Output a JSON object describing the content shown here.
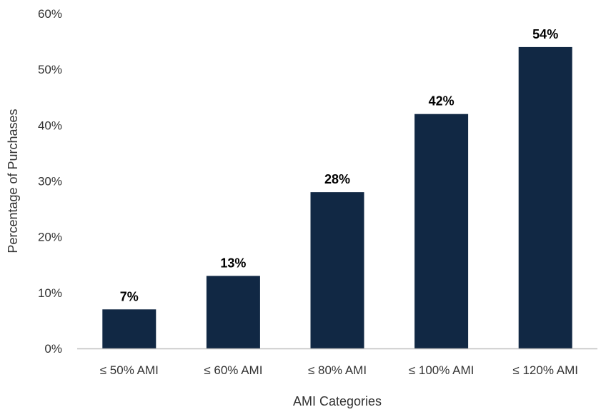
{
  "chart_data": {
    "type": "bar",
    "categories": [
      "≤ 50% AMI",
      "≤ 60% AMI",
      "≤ 80% AMI",
      "≤ 100% AMI",
      "≤ 120% AMI"
    ],
    "values": [
      7,
      13,
      28,
      42,
      54
    ],
    "data_labels": [
      "7%",
      "13%",
      "28%",
      "42%",
      "54%"
    ],
    "title": "",
    "xlabel": "AMI Categories",
    "ylabel": "Percentage of Purchases",
    "ylim": [
      0,
      60
    ],
    "yticks": [
      0,
      10,
      20,
      30,
      40,
      50,
      60
    ],
    "ytick_labels": [
      "0%",
      "10%",
      "20%",
      "30%",
      "40%",
      "50%",
      "60%"
    ],
    "grid": false,
    "legend": "none",
    "bar_color": "#112844",
    "axis_color": "#bfbfbf"
  }
}
